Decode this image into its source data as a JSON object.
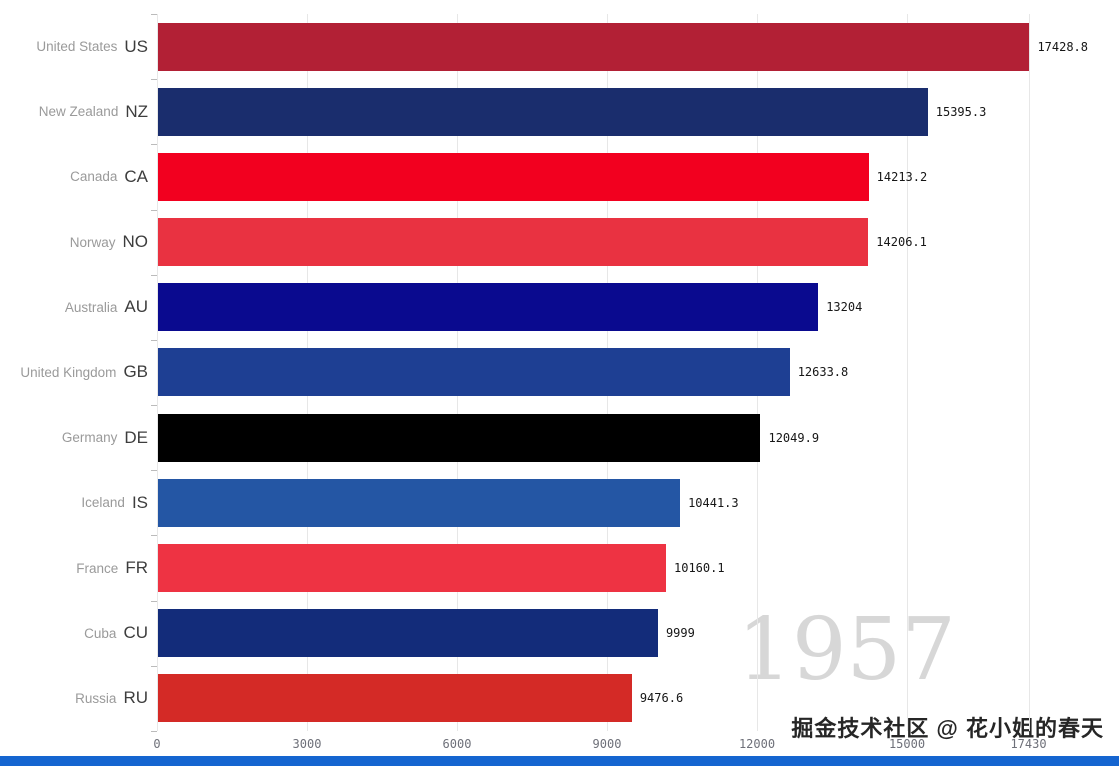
{
  "chart_data": {
    "type": "bar",
    "orientation": "horizontal",
    "title": "",
    "xlabel": "",
    "ylabel": "",
    "year_label": "1957",
    "grid": true,
    "x_max": 17430,
    "x_ticks": [
      0,
      3000,
      6000,
      9000,
      12000,
      15000,
      17430
    ],
    "x_tick_labels": [
      "0",
      "3000",
      "6000",
      "9000",
      "12000",
      "15000",
      "17430"
    ],
    "categories": [
      "United States",
      "New Zealand",
      "Canada",
      "Norway",
      "Australia",
      "United Kingdom",
      "Germany",
      "Iceland",
      "France",
      "Cuba",
      "Russia"
    ],
    "codes": [
      "US",
      "NZ",
      "CA",
      "NO",
      "AU",
      "GB",
      "DE",
      "IS",
      "FR",
      "CU",
      "RU"
    ],
    "values": [
      17428.8,
      15395.3,
      14213.2,
      14206.1,
      13204,
      12633.8,
      12049.9,
      10441.3,
      10160.1,
      9999,
      9476.6
    ],
    "value_labels": [
      "17428.8",
      "15395.3",
      "14213.2",
      "14206.1",
      "13204",
      "12633.8",
      "12049.9",
      "10441.3",
      "10160.1",
      "9999",
      "9476.6"
    ],
    "bar_colors": [
      "#b22035",
      "#1a2d6d",
      "#f2001f",
      "#e93241",
      "#0a0a8f",
      "#1e3f93",
      "#000000",
      "#2456a4",
      "#ee3343",
      "#132c7a",
      "#d42a26"
    ]
  },
  "footer": {
    "watermark": "掘金技术社区 @ 花小姐的春天",
    "strip_color": "#1565d0"
  }
}
